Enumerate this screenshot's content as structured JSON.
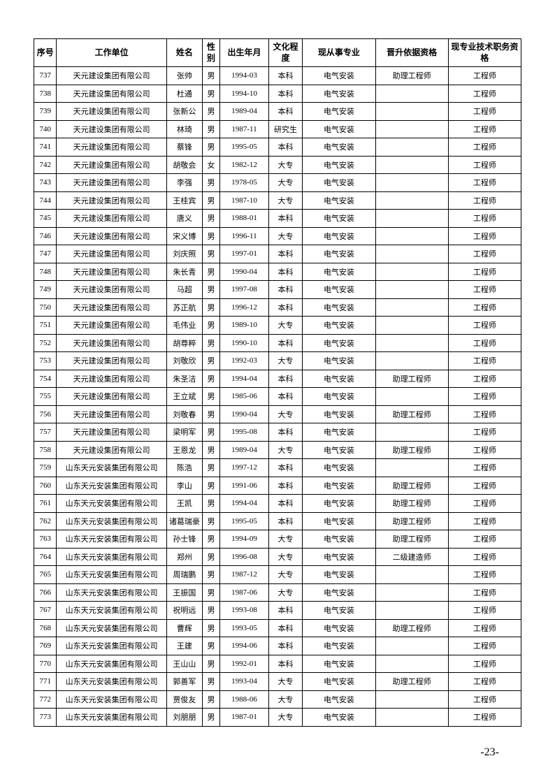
{
  "headers": {
    "seq": "序号",
    "company": "工作单位",
    "name": "姓名",
    "gender": "性别",
    "birth": "出生年月",
    "edu": "文化程度",
    "major": "现从事专业",
    "basis": "晋升依据资格",
    "title": "现专业技术职务资格"
  },
  "rows": [
    {
      "seq": "737",
      "company": "天元建设集团有限公司",
      "name": "张帅",
      "gender": "男",
      "birth": "1994-03",
      "edu": "本科",
      "major": "电气安装",
      "basis": "助理工程师",
      "title": "工程师"
    },
    {
      "seq": "738",
      "company": "天元建设集团有限公司",
      "name": "杜通",
      "gender": "男",
      "birth": "1994-10",
      "edu": "本科",
      "major": "电气安装",
      "basis": "",
      "title": "工程师"
    },
    {
      "seq": "739",
      "company": "天元建设集团有限公司",
      "name": "张新公",
      "gender": "男",
      "birth": "1989-04",
      "edu": "本科",
      "major": "电气安装",
      "basis": "",
      "title": "工程师"
    },
    {
      "seq": "740",
      "company": "天元建设集团有限公司",
      "name": "林琦",
      "gender": "男",
      "birth": "1987-11",
      "edu": "研究生",
      "major": "电气安装",
      "basis": "",
      "title": "工程师"
    },
    {
      "seq": "741",
      "company": "天元建设集团有限公司",
      "name": "蔡锋",
      "gender": "男",
      "birth": "1995-05",
      "edu": "本科",
      "major": "电气安装",
      "basis": "",
      "title": "工程师"
    },
    {
      "seq": "742",
      "company": "天元建设集团有限公司",
      "name": "胡敬会",
      "gender": "女",
      "birth": "1982-12",
      "edu": "大专",
      "major": "电气安装",
      "basis": "",
      "title": "工程师"
    },
    {
      "seq": "743",
      "company": "天元建设集团有限公司",
      "name": "李强",
      "gender": "男",
      "birth": "1978-05",
      "edu": "大专",
      "major": "电气安装",
      "basis": "",
      "title": "工程师"
    },
    {
      "seq": "744",
      "company": "天元建设集团有限公司",
      "name": "王桂宾",
      "gender": "男",
      "birth": "1987-10",
      "edu": "大专",
      "major": "电气安装",
      "basis": "",
      "title": "工程师"
    },
    {
      "seq": "745",
      "company": "天元建设集团有限公司",
      "name": "唐义",
      "gender": "男",
      "birth": "1988-01",
      "edu": "本科",
      "major": "电气安装",
      "basis": "",
      "title": "工程师"
    },
    {
      "seq": "746",
      "company": "天元建设集团有限公司",
      "name": "宋义博",
      "gender": "男",
      "birth": "1996-11",
      "edu": "大专",
      "major": "电气安装",
      "basis": "",
      "title": "工程师"
    },
    {
      "seq": "747",
      "company": "天元建设集团有限公司",
      "name": "刘庆照",
      "gender": "男",
      "birth": "1997-01",
      "edu": "本科",
      "major": "电气安装",
      "basis": "",
      "title": "工程师"
    },
    {
      "seq": "748",
      "company": "天元建设集团有限公司",
      "name": "朱长青",
      "gender": "男",
      "birth": "1990-04",
      "edu": "本科",
      "major": "电气安装",
      "basis": "",
      "title": "工程师"
    },
    {
      "seq": "749",
      "company": "天元建设集团有限公司",
      "name": "马超",
      "gender": "男",
      "birth": "1997-08",
      "edu": "本科",
      "major": "电气安装",
      "basis": "",
      "title": "工程师"
    },
    {
      "seq": "750",
      "company": "天元建设集团有限公司",
      "name": "苏正航",
      "gender": "男",
      "birth": "1996-12",
      "edu": "本科",
      "major": "电气安装",
      "basis": "",
      "title": "工程师"
    },
    {
      "seq": "751",
      "company": "天元建设集团有限公司",
      "name": "毛伟业",
      "gender": "男",
      "birth": "1989-10",
      "edu": "大专",
      "major": "电气安装",
      "basis": "",
      "title": "工程师"
    },
    {
      "seq": "752",
      "company": "天元建设集团有限公司",
      "name": "胡尊粹",
      "gender": "男",
      "birth": "1990-10",
      "edu": "本科",
      "major": "电气安装",
      "basis": "",
      "title": "工程师"
    },
    {
      "seq": "753",
      "company": "天元建设集团有限公司",
      "name": "刘敬欣",
      "gender": "男",
      "birth": "1992-03",
      "edu": "大专",
      "major": "电气安装",
      "basis": "",
      "title": "工程师"
    },
    {
      "seq": "754",
      "company": "天元建设集团有限公司",
      "name": "朱圣洁",
      "gender": "男",
      "birth": "1994-04",
      "edu": "本科",
      "major": "电气安装",
      "basis": "助理工程师",
      "title": "工程师"
    },
    {
      "seq": "755",
      "company": "天元建设集团有限公司",
      "name": "王立斌",
      "gender": "男",
      "birth": "1985-06",
      "edu": "本科",
      "major": "电气安装",
      "basis": "",
      "title": "工程师"
    },
    {
      "seq": "756",
      "company": "天元建设集团有限公司",
      "name": "刘敬春",
      "gender": "男",
      "birth": "1990-04",
      "edu": "大专",
      "major": "电气安装",
      "basis": "助理工程师",
      "title": "工程师"
    },
    {
      "seq": "757",
      "company": "天元建设集团有限公司",
      "name": "梁明军",
      "gender": "男",
      "birth": "1995-08",
      "edu": "本科",
      "major": "电气安装",
      "basis": "",
      "title": "工程师"
    },
    {
      "seq": "758",
      "company": "天元建设集团有限公司",
      "name": "王恩龙",
      "gender": "男",
      "birth": "1989-04",
      "edu": "大专",
      "major": "电气安装",
      "basis": "助理工程师",
      "title": "工程师"
    },
    {
      "seq": "759",
      "company": "山东天元安装集团有限公司",
      "name": "陈浩",
      "gender": "男",
      "birth": "1997-12",
      "edu": "本科",
      "major": "电气安装",
      "basis": "",
      "title": "工程师"
    },
    {
      "seq": "760",
      "company": "山东天元安装集团有限公司",
      "name": "李山",
      "gender": "男",
      "birth": "1991-06",
      "edu": "本科",
      "major": "电气安装",
      "basis": "助理工程师",
      "title": "工程师"
    },
    {
      "seq": "761",
      "company": "山东天元安装集团有限公司",
      "name": "王凯",
      "gender": "男",
      "birth": "1994-04",
      "edu": "本科",
      "major": "电气安装",
      "basis": "助理工程师",
      "title": "工程师"
    },
    {
      "seq": "762",
      "company": "山东天元安装集团有限公司",
      "name": "诸葛瑞豪",
      "gender": "男",
      "birth": "1995-05",
      "edu": "本科",
      "major": "电气安装",
      "basis": "助理工程师",
      "title": "工程师"
    },
    {
      "seq": "763",
      "company": "山东天元安装集团有限公司",
      "name": "孙士锋",
      "gender": "男",
      "birth": "1994-09",
      "edu": "大专",
      "major": "电气安装",
      "basis": "助理工程师",
      "title": "工程师"
    },
    {
      "seq": "764",
      "company": "山东天元安装集团有限公司",
      "name": "郑州",
      "gender": "男",
      "birth": "1996-08",
      "edu": "大专",
      "major": "电气安装",
      "basis": "二级建造师",
      "title": "工程师"
    },
    {
      "seq": "765",
      "company": "山东天元安装集团有限公司",
      "name": "周瑞鹏",
      "gender": "男",
      "birth": "1987-12",
      "edu": "大专",
      "major": "电气安装",
      "basis": "",
      "title": "工程师"
    },
    {
      "seq": "766",
      "company": "山东天元安装集团有限公司",
      "name": "王振国",
      "gender": "男",
      "birth": "1987-06",
      "edu": "大专",
      "major": "电气安装",
      "basis": "",
      "title": "工程师"
    },
    {
      "seq": "767",
      "company": "山东天元安装集团有限公司",
      "name": "祝明远",
      "gender": "男",
      "birth": "1993-08",
      "edu": "本科",
      "major": "电气安装",
      "basis": "",
      "title": "工程师"
    },
    {
      "seq": "768",
      "company": "山东天元安装集团有限公司",
      "name": "曹辉",
      "gender": "男",
      "birth": "1993-05",
      "edu": "本科",
      "major": "电气安装",
      "basis": "助理工程师",
      "title": "工程师"
    },
    {
      "seq": "769",
      "company": "山东天元安装集团有限公司",
      "name": "王建",
      "gender": "男",
      "birth": "1994-06",
      "edu": "本科",
      "major": "电气安装",
      "basis": "",
      "title": "工程师"
    },
    {
      "seq": "770",
      "company": "山东天元安装集团有限公司",
      "name": "王山山",
      "gender": "男",
      "birth": "1992-01",
      "edu": "本科",
      "major": "电气安装",
      "basis": "",
      "title": "工程师"
    },
    {
      "seq": "771",
      "company": "山东天元安装集团有限公司",
      "name": "郭善军",
      "gender": "男",
      "birth": "1993-04",
      "edu": "大专",
      "major": "电气安装",
      "basis": "助理工程师",
      "title": "工程师"
    },
    {
      "seq": "772",
      "company": "山东天元安装集团有限公司",
      "name": "贾俊友",
      "gender": "男",
      "birth": "1988-06",
      "edu": "大专",
      "major": "电气安装",
      "basis": "",
      "title": "工程师"
    },
    {
      "seq": "773",
      "company": "山东天元安装集团有限公司",
      "name": "刘朋朋",
      "gender": "男",
      "birth": "1987-01",
      "edu": "大专",
      "major": "电气安装",
      "basis": "",
      "title": "工程师"
    }
  ],
  "page_number": "-23-"
}
